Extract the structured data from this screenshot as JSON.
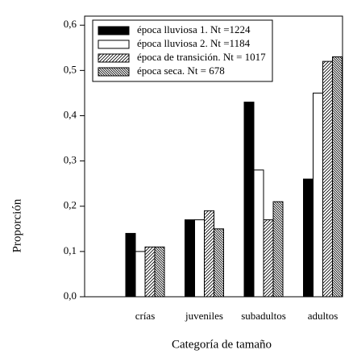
{
  "chart_data": {
    "type": "bar",
    "categories": [
      "crías",
      "juveniles",
      "subadultos",
      "adultos"
    ],
    "series": [
      {
        "name": "época lluviosa 1. Nt =1224",
        "color": "#000000",
        "values": [
          0.14,
          0.17,
          0.43,
          0.26
        ]
      },
      {
        "name": "época lluviosa 2. Nt =1184",
        "color": "#ffffff",
        "values": [
          0.1,
          0.17,
          0.28,
          0.45
        ]
      },
      {
        "name": "época de transición. Nt = 1017",
        "color": "#ffffff",
        "hatch": "/",
        "values": [
          0.11,
          0.19,
          0.17,
          0.52
        ]
      },
      {
        "name": "época seca. Nt = 678",
        "color": "#ffffff",
        "hatch": "\\",
        "values": [
          0.11,
          0.15,
          0.21,
          0.53
        ]
      }
    ],
    "ylim": [
      0,
      0.62
    ],
    "yticks": [
      {
        "value": 0,
        "label": "0,0"
      },
      {
        "value": 0.1,
        "label": "0,1"
      },
      {
        "value": 0.2,
        "label": "0,2"
      },
      {
        "value": 0.3,
        "label": "0,3"
      },
      {
        "value": 0.4,
        "label": "0,4"
      },
      {
        "value": 0.5,
        "label": "0,5"
      },
      {
        "value": 0.6,
        "label": "0,6"
      }
    ],
    "x_label": "Categoría de tamaño",
    "y_label": "Proporción"
  }
}
